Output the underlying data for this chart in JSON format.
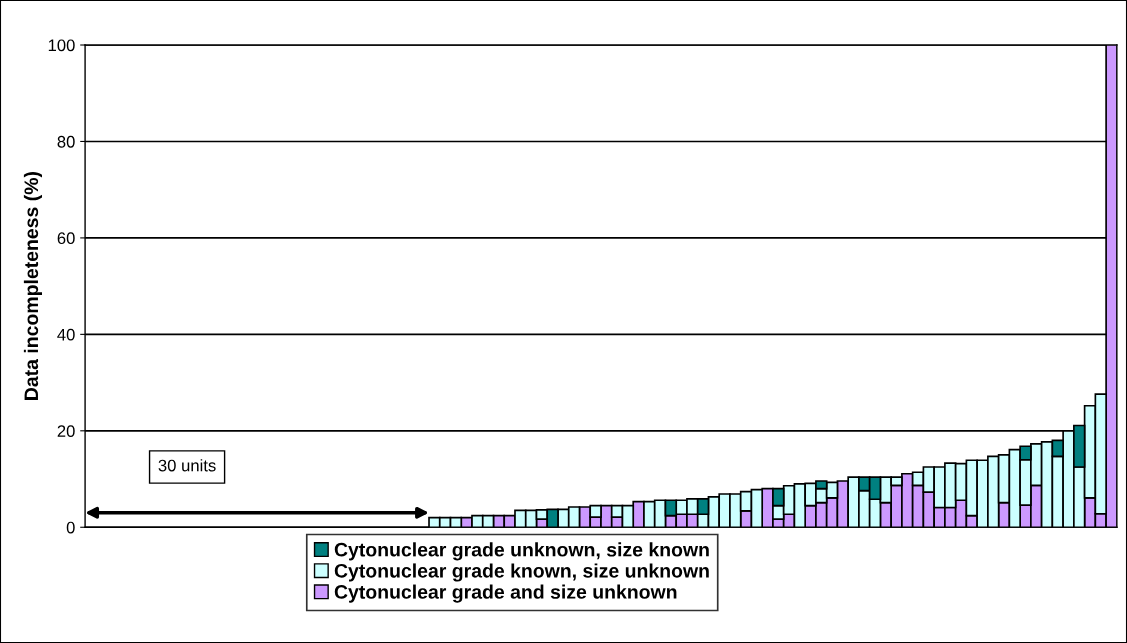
{
  "chart_data": {
    "type": "bar",
    "stacked": true,
    "ylabel": "Data incompleteness (%)",
    "categories": [
      null,
      null,
      null,
      null,
      null,
      null,
      null,
      null,
      null,
      null,
      null,
      null,
      null,
      null,
      null,
      null,
      null,
      null,
      null,
      null,
      null,
      null,
      null,
      null,
      null,
      null,
      null,
      null,
      null,
      null,
      null,
      null,
      null,
      null,
      null,
      null,
      null,
      null,
      null,
      null,
      null,
      null,
      null,
      null,
      null,
      null,
      null,
      null,
      null,
      null,
      null,
      null,
      null,
      null,
      null,
      null,
      null,
      null,
      null,
      null,
      null,
      null,
      null,
      null,
      null,
      null,
      null,
      null,
      null,
      null,
      null,
      null,
      null,
      null,
      null,
      null,
      null,
      null,
      null,
      null,
      null,
      null,
      null,
      null,
      null,
      null,
      null,
      null,
      null,
      null,
      null,
      null,
      null,
      null,
      null,
      null
    ],
    "series": [
      {
        "name": "Cytonuclear grade and size unknown",
        "color": "#cc99ff",
        "values": [
          null,
          null,
          null,
          null,
          null,
          null,
          null,
          null,
          null,
          null,
          null,
          null,
          null,
          null,
          null,
          null,
          null,
          null,
          null,
          null,
          null,
          null,
          null,
          null,
          null,
          null,
          null,
          null,
          null,
          null,
          null,
          null,
          null,
          null,
          null,
          2.0,
          null,
          null,
          2.4,
          2.4,
          null,
          null,
          1.7,
          null,
          null,
          null,
          4.2,
          2.1,
          4.5,
          2.1,
          null,
          5.3,
          null,
          null,
          2.4,
          2.7,
          2.7,
          null,
          null,
          null,
          null,
          3.4,
          null,
          8.0,
          1.7,
          2.7,
          null,
          4.5,
          5.1,
          6.1,
          9.6,
          null,
          null,
          null,
          5.1,
          8.7,
          11.1,
          8.7,
          7.3,
          4.1,
          4.1,
          5.6,
          2.4,
          null,
          null,
          5.1,
          null,
          4.6,
          8.7,
          null,
          null,
          null,
          null,
          6.1,
          2.8,
          100
        ]
      },
      {
        "name": "Cytonuclear grade known, size unknown",
        "color": "#ccffff",
        "values": [
          null,
          null,
          null,
          null,
          null,
          null,
          null,
          null,
          null,
          null,
          null,
          null,
          null,
          null,
          null,
          null,
          null,
          null,
          null,
          null,
          null,
          null,
          null,
          null,
          null,
          null,
          null,
          null,
          null,
          null,
          null,
          null,
          2.0,
          2.0,
          2.0,
          null,
          2.4,
          2.4,
          null,
          null,
          3.5,
          3.5,
          1.9,
          null,
          3.7,
          4.2,
          null,
          2.4,
          null,
          2.4,
          4.5,
          null,
          5.3,
          5.6,
          null,
          2.9,
          3.2,
          2.7,
          6.3,
          6.9,
          6.9,
          4.0,
          7.8,
          null,
          2.8,
          5.9,
          9.0,
          4.6,
          2.9,
          3.2,
          null,
          10.4,
          7.6,
          5.8,
          5.3,
          1.7,
          null,
          2.7,
          5.2,
          8.4,
          9.2,
          7.6,
          11.5,
          13.9,
          14.7,
          9.9,
          16.1,
          9.4,
          8.6,
          17.7,
          14.7,
          20.0,
          12.5,
          19.1,
          24.8,
          null
        ]
      },
      {
        "name": "Cytonuclear grade unknown, size known",
        "color": "#008080",
        "values": [
          null,
          null,
          null,
          null,
          null,
          null,
          null,
          null,
          null,
          null,
          null,
          null,
          null,
          null,
          null,
          null,
          null,
          null,
          null,
          null,
          null,
          null,
          null,
          null,
          null,
          null,
          null,
          null,
          null,
          null,
          null,
          null,
          null,
          null,
          null,
          null,
          null,
          null,
          null,
          null,
          null,
          null,
          null,
          3.7,
          null,
          null,
          null,
          null,
          null,
          null,
          null,
          null,
          null,
          null,
          3.2,
          null,
          null,
          3.2,
          null,
          null,
          null,
          null,
          null,
          null,
          3.5,
          null,
          null,
          null,
          1.6,
          null,
          null,
          null,
          2.8,
          4.6,
          null,
          null,
          null,
          null,
          null,
          null,
          null,
          null,
          null,
          null,
          null,
          null,
          null,
          2.8,
          null,
          null,
          3.3,
          null,
          8.6,
          null,
          null,
          null
        ]
      }
    ],
    "ylim": [
      0,
      100
    ],
    "yticks": [
      0,
      20,
      40,
      60,
      80,
      100
    ],
    "grid": "y",
    "legend": "bottom",
    "tick_labels": "y",
    "annotations": [
      "30 units"
    ]
  }
}
